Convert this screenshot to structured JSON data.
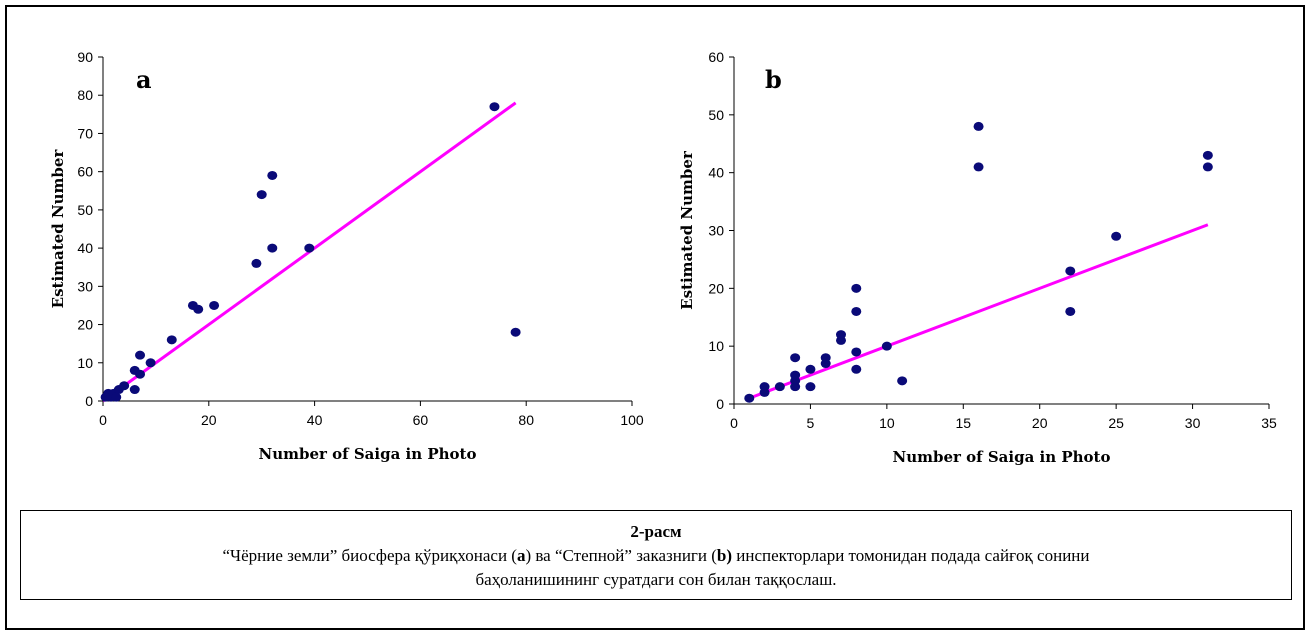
{
  "chart_data": [
    {
      "type": "scatter",
      "panel_label": "a",
      "xlabel": "Number of Saiga in Photo",
      "ylabel": "Estimated Number",
      "xlim": [
        0,
        100
      ],
      "ylim": [
        0,
        90
      ],
      "xticks": [
        0,
        20,
        40,
        60,
        80,
        100
      ],
      "yticks": [
        0,
        10,
        20,
        30,
        40,
        50,
        60,
        70,
        80,
        90
      ],
      "point_color": "#0a0a78",
      "trend_color": "#ff00ff",
      "points": [
        [
          0.5,
          1
        ],
        [
          1,
          2
        ],
        [
          1.5,
          1
        ],
        [
          2,
          2
        ],
        [
          2.5,
          1
        ],
        [
          3,
          3
        ],
        [
          4,
          4
        ],
        [
          6,
          8
        ],
        [
          6,
          3
        ],
        [
          7,
          12
        ],
        [
          7,
          7
        ],
        [
          9,
          10
        ],
        [
          13,
          16
        ],
        [
          17,
          25
        ],
        [
          18,
          24
        ],
        [
          21,
          25
        ],
        [
          29,
          36
        ],
        [
          30,
          54
        ],
        [
          32,
          59
        ],
        [
          32,
          40
        ],
        [
          39,
          40
        ],
        [
          74,
          77
        ],
        [
          78,
          18
        ]
      ],
      "trendline": [
        [
          0,
          0
        ],
        [
          78,
          78
        ]
      ]
    },
    {
      "type": "scatter",
      "panel_label": "b",
      "xlabel": "Number of Saiga in Photo",
      "ylabel": "Estimated Number",
      "xlim": [
        0,
        35
      ],
      "ylim": [
        0,
        60
      ],
      "xticks": [
        0,
        5,
        10,
        15,
        20,
        25,
        30,
        35
      ],
      "yticks": [
        0,
        10,
        20,
        30,
        40,
        50,
        60
      ],
      "point_color": "#0a0a78",
      "trend_color": "#ff00ff",
      "points": [
        [
          1,
          1
        ],
        [
          2,
          2
        ],
        [
          2,
          3
        ],
        [
          3,
          3
        ],
        [
          4,
          3
        ],
        [
          4,
          4
        ],
        [
          4,
          5
        ],
        [
          4,
          8
        ],
        [
          5,
          3
        ],
        [
          5,
          6
        ],
        [
          6,
          7
        ],
        [
          6,
          8
        ],
        [
          7,
          11
        ],
        [
          7,
          12
        ],
        [
          8,
          6
        ],
        [
          8,
          9
        ],
        [
          8,
          16
        ],
        [
          8,
          20
        ],
        [
          10,
          10
        ],
        [
          11,
          4
        ],
        [
          16,
          41
        ],
        [
          16,
          48
        ],
        [
          22,
          16
        ],
        [
          22,
          23
        ],
        [
          25,
          29
        ],
        [
          31,
          41
        ],
        [
          31,
          43
        ]
      ],
      "trendline": [
        [
          1,
          1
        ],
        [
          31,
          31
        ]
      ]
    }
  ],
  "caption": {
    "heading": "2-расм",
    "line1_a": "“Чёрние земли” биосфера қўриқхонаси (",
    "line1_b": "a",
    "line1_c": ") ва “Степной”  заказниги (",
    "line1_d": "b)",
    "line1_e": "   инспекторлари томонидан подада сайғоқ сонини",
    "line2": "баҳоланишининг   суратдаги сон  билан таққослаш."
  }
}
